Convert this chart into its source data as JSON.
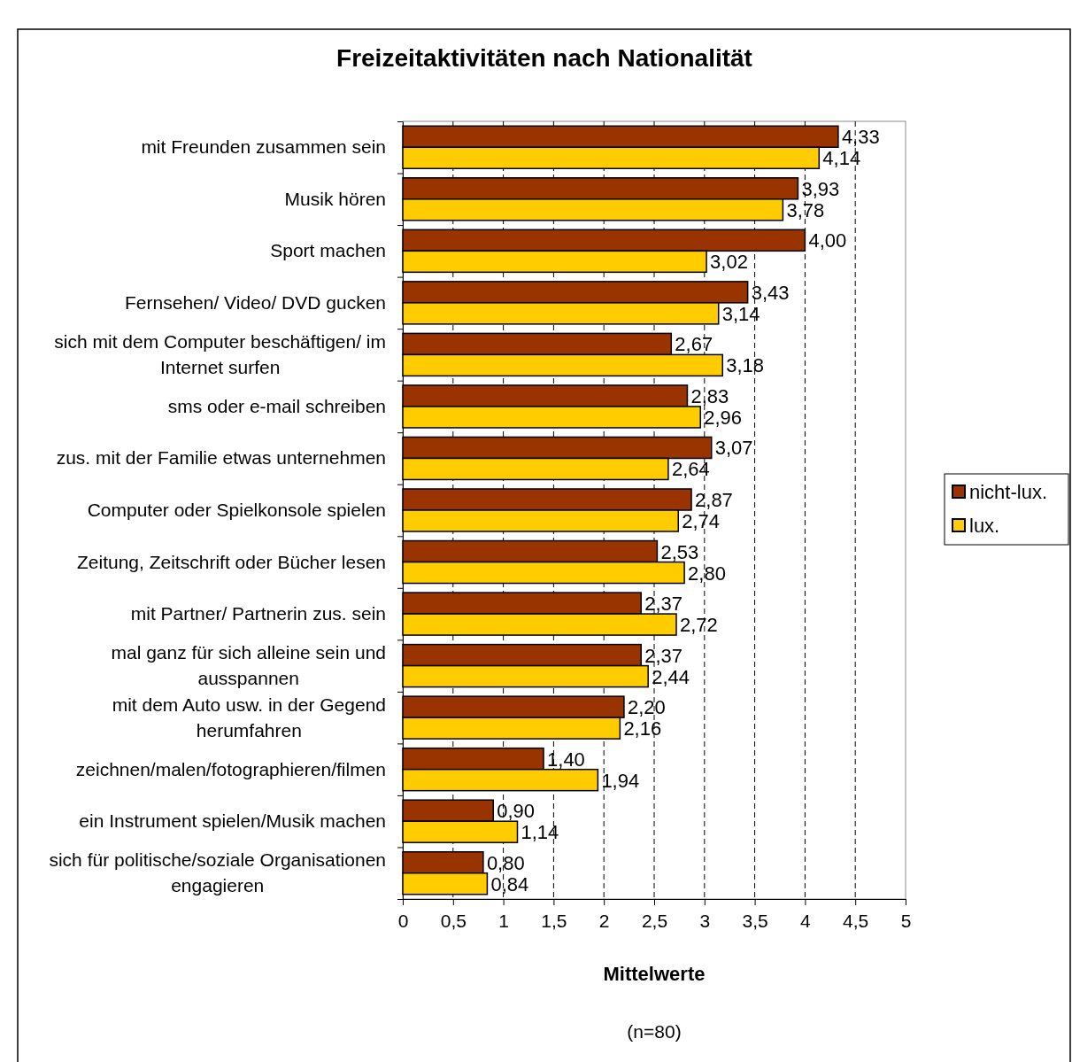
{
  "chart_data": {
    "type": "bar",
    "orientation": "horizontal",
    "title": "Freizeitaktivitäten nach Nationalität",
    "xlabel": "Mittelwerte",
    "annotations": [
      "(n=80)"
    ],
    "categories": [
      "mit Freunden zusammen sein",
      "Musik hören",
      "Sport machen",
      "Fernsehen/ Video/ DVD gucken",
      "sich mit dem Computer beschäftigen/ im Internet surfen",
      "sms oder e-mail schreiben",
      "zus. mit der Familie etwas unternehmen",
      "Computer oder Spielkonsole spielen",
      "Zeitung, Zeitschrift oder Bücher lesen",
      "mit Partner/ Partnerin zus. sein",
      "mal ganz für sich alleine sein und ausspannen",
      "mit dem Auto usw. in der Gegend herumfahren",
      "zeichnen/malen/fotographieren/filmen",
      "ein Instrument spielen/Musik machen",
      "sich für politische/soziale Organisationen engagieren"
    ],
    "series": [
      {
        "name": "nicht-lux.",
        "color": "#993300",
        "values": [
          4.33,
          3.93,
          4.0,
          3.43,
          2.67,
          2.83,
          3.07,
          2.87,
          2.53,
          2.37,
          2.37,
          2.2,
          1.4,
          0.9,
          0.8
        ],
        "value_labels": [
          "4,33",
          "3,93",
          "4,00",
          "3,43",
          "2,67",
          "2,83",
          "3,07",
          "2,87",
          "2,53",
          "2,37",
          "2,37",
          "2,20",
          "1,40",
          "0,90",
          "0,80"
        ]
      },
      {
        "name": "lux.",
        "color": "#ffcc00",
        "values": [
          4.14,
          3.78,
          3.02,
          3.14,
          3.18,
          2.96,
          2.64,
          2.74,
          2.8,
          2.72,
          2.44,
          2.16,
          1.94,
          1.14,
          0.84
        ],
        "value_labels": [
          "4,14",
          "3,78",
          "3,02",
          "3,14",
          "3,18",
          "2,96",
          "2,64",
          "2,74",
          "2,80",
          "2,72",
          "2,44",
          "2,16",
          "1,94",
          "1,14",
          "0,84"
        ]
      }
    ],
    "xlim": [
      0,
      5
    ],
    "xticks": [
      0,
      {
        "value": 0.5,
        "label": "0,5"
      },
      1,
      {
        "value": 1.5,
        "label": "1,5"
      },
      2,
      {
        "value": 2.5,
        "label": "2,5"
      },
      3,
      {
        "value": 3.5,
        "label": "3,5"
      },
      4,
      {
        "value": 4.5,
        "label": "4,5"
      },
      5
    ],
    "grid": "x",
    "legend": "right"
  }
}
